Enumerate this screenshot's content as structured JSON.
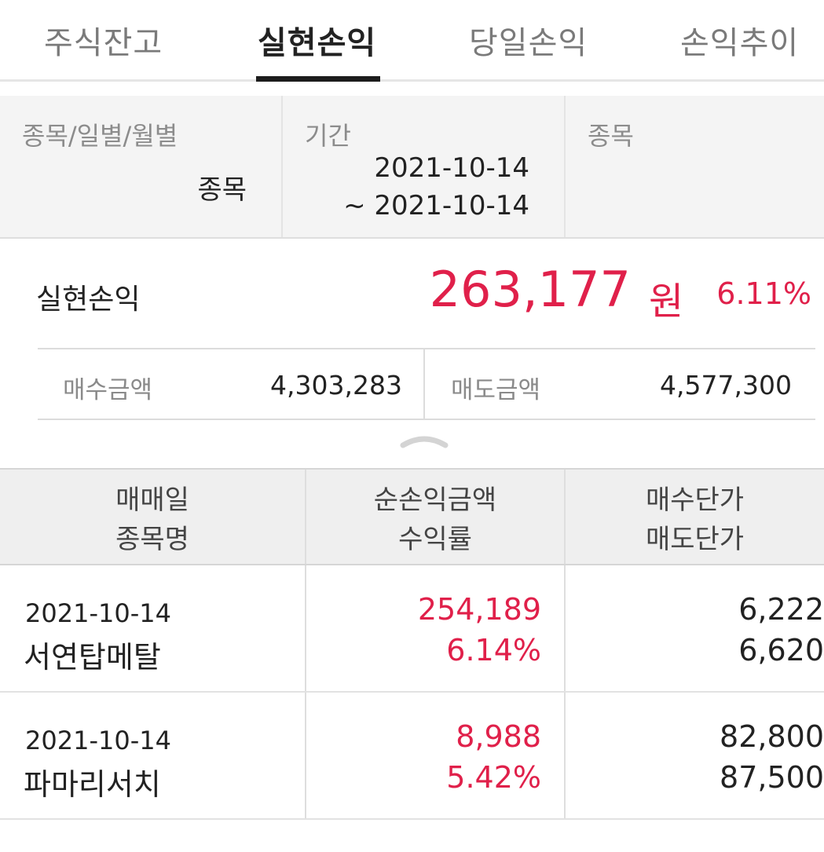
{
  "tabs": [
    {
      "label": "주식잔고",
      "active": false
    },
    {
      "label": "실현손익",
      "active": true
    },
    {
      "label": "당일손익",
      "active": false
    },
    {
      "label": "손익추이",
      "active": false
    }
  ],
  "filter": {
    "type_label": "종목/일별/월별",
    "type_value": "종목",
    "period_label": "기간",
    "period_start": "2021-10-14",
    "period_end": "~ 2021-10-14",
    "stock_label": "종목",
    "stock_value": ""
  },
  "summary": {
    "label": "실현손익",
    "amount": "263,177",
    "unit": "원",
    "rate": "6.11%"
  },
  "amounts": {
    "buy_label": "매수금액",
    "buy_value": "4,303,283",
    "sell_label": "매도금액",
    "sell_value": "4,577,300"
  },
  "table": {
    "headers": {
      "col1_line1": "매매일",
      "col1_line2": "종목명",
      "col2_line1": "순손익금액",
      "col2_line2": "수익률",
      "col3_line1": "매수단가",
      "col3_line2": "매도단가"
    },
    "rows": [
      {
        "date": "2021-10-14",
        "name": "서연탑메탈",
        "profit": "254,189",
        "rate": "6.14%",
        "buy_price": "6,222",
        "sell_price": "6,620"
      },
      {
        "date": "2021-10-14",
        "name": "파마리서치",
        "profit": "8,988",
        "rate": "5.42%",
        "buy_price": "82,800",
        "sell_price": "87,500"
      }
    ]
  },
  "colors": {
    "profit_red": "#e0204a",
    "active_tab": "#1c1c1c",
    "muted_text": "#8c8c8c"
  }
}
